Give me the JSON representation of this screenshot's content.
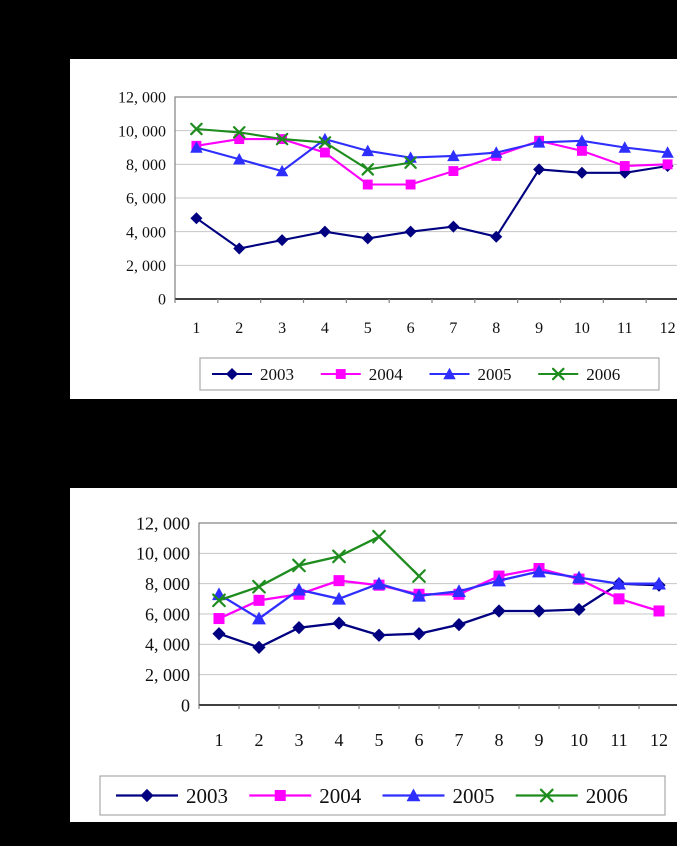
{
  "page": {
    "background": "#000000"
  },
  "chart_data": [
    {
      "id": "upper-monthly-line-chart",
      "type": "line",
      "title": "",
      "xlabel": "",
      "ylabel": "",
      "categories": [
        "1",
        "2",
        "3",
        "4",
        "5",
        "6",
        "7",
        "8",
        "9",
        "10",
        "11",
        "12"
      ],
      "y_axis": {
        "tick_labels": [
          "12, 000",
          "10, 000",
          "8, 000",
          "6, 000",
          "4, 000",
          "2, 000",
          "0"
        ],
        "tick_values": [
          12000,
          10000,
          8000,
          6000,
          4000,
          2000,
          0
        ],
        "ylim": [
          0,
          12000
        ]
      },
      "grid": true,
      "legend_position": "bottom",
      "series": [
        {
          "name": "2003",
          "color": "#000080",
          "marker": "diamond",
          "values": [
            4800,
            3000,
            3500,
            4000,
            3600,
            4000,
            4300,
            3700,
            7700,
            7500,
            7500,
            7900
          ]
        },
        {
          "name": "2004",
          "color": "#FF00FF",
          "marker": "square",
          "values": [
            9100,
            9500,
            9500,
            8700,
            6800,
            6800,
            7600,
            8500,
            9400,
            8800,
            7900,
            8000
          ]
        },
        {
          "name": "2005",
          "color": "#2E2EFF",
          "marker": "triangle",
          "values": [
            9000,
            8300,
            7600,
            9500,
            8800,
            8400,
            8500,
            8700,
            9300,
            9400,
            9000,
            8700
          ]
        },
        {
          "name": "2006",
          "color": "#1E8C1E",
          "marker": "x",
          "values": [
            10100,
            9900,
            9500,
            9300,
            7700,
            8100,
            null,
            null,
            null,
            null,
            null,
            null
          ]
        }
      ]
    },
    {
      "id": "lower-monthly-line-chart",
      "type": "line",
      "title": "",
      "xlabel": "",
      "ylabel": "",
      "categories": [
        "1",
        "2",
        "3",
        "4",
        "5",
        "6",
        "7",
        "8",
        "9",
        "10",
        "11",
        "12"
      ],
      "y_axis": {
        "tick_labels": [
          "12, 000",
          "10, 000",
          "8, 000",
          "6, 000",
          "4, 000",
          "2, 000",
          "0"
        ],
        "tick_values": [
          12000,
          10000,
          8000,
          6000,
          4000,
          2000,
          0
        ],
        "ylim": [
          0,
          12000
        ]
      },
      "grid": true,
      "legend_position": "bottom",
      "series": [
        {
          "name": "2003",
          "color": "#000080",
          "marker": "diamond",
          "values": [
            4700,
            3800,
            5100,
            5400,
            4600,
            4700,
            5300,
            6200,
            6200,
            6300,
            8000,
            7900
          ]
        },
        {
          "name": "2004",
          "color": "#FF00FF",
          "marker": "square",
          "values": [
            5700,
            6900,
            7300,
            8200,
            7900,
            7300,
            7300,
            8500,
            9000,
            8300,
            7000,
            6200
          ]
        },
        {
          "name": "2005",
          "color": "#2E2EFF",
          "marker": "triangle",
          "values": [
            7300,
            5700,
            7600,
            7000,
            8000,
            7200,
            7500,
            8200,
            8800,
            8400,
            8000,
            8000
          ]
        },
        {
          "name": "2006",
          "color": "#1E8C1E",
          "marker": "x",
          "values": [
            6900,
            7800,
            9200,
            9800,
            11100,
            8500,
            null,
            null,
            null,
            null,
            null,
            null
          ]
        }
      ]
    }
  ],
  "colors": {
    "gridline": "#C6C6C6",
    "plot_border": "#808080",
    "axis_line": "#404040",
    "legend_border": "#ABABAB"
  }
}
